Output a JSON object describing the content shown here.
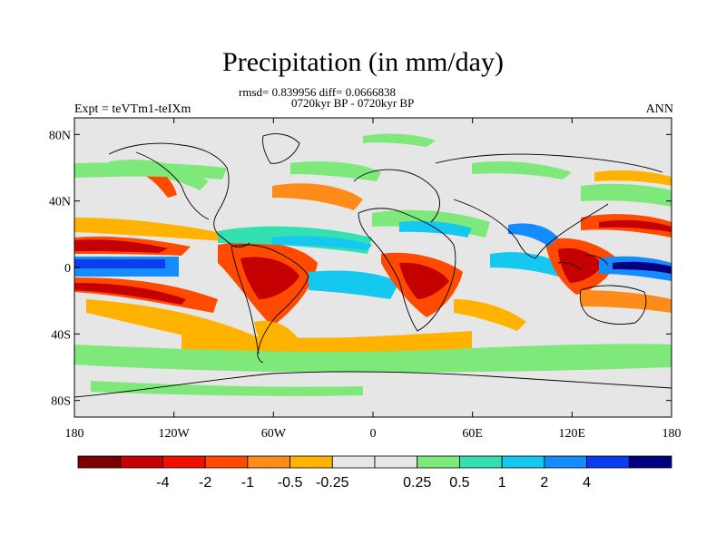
{
  "title": "Precipitation (in mm/day)",
  "stats_line": "rmsd= 0.839956 diff= 0.0666838",
  "period_line": "0720kyr BP - 0720kyr BP",
  "left_label": "Expt = teVTm1-teIXm",
  "right_label": "ANN",
  "map": {
    "projection": "cylindrical-equidistant",
    "lon_range": [
      -180,
      180
    ],
    "lat_range": [
      -90,
      90
    ],
    "background_color": "#e6e6e6",
    "x_ticks": [
      {
        "lon": -180,
        "label": "180"
      },
      {
        "lon": -120,
        "label": "120W"
      },
      {
        "lon": -60,
        "label": "60W"
      },
      {
        "lon": 0,
        "label": "0"
      },
      {
        "lon": 60,
        "label": "60E"
      },
      {
        "lon": 120,
        "label": "120E"
      },
      {
        "lon": 180,
        "label": "180"
      }
    ],
    "y_ticks": [
      {
        "lat": 80,
        "label": "80N"
      },
      {
        "lat": 40,
        "label": "40N"
      },
      {
        "lat": 0,
        "label": "0"
      },
      {
        "lat": -40,
        "label": "40S"
      },
      {
        "lat": -80,
        "label": "80S"
      }
    ]
  },
  "colorbar": {
    "colors": [
      "#7b0000",
      "#c40000",
      "#f01000",
      "#ff4a00",
      "#ff8c1a",
      "#ffb300",
      "#e6e6e6",
      "#e6e6e6",
      "#7fe87a",
      "#33e0b0",
      "#14c8f0",
      "#148cff",
      "#0a3cf0",
      "#000080"
    ],
    "labels": [
      "-4",
      "-2",
      "-1",
      "-0.5",
      "-0.25",
      "0.25",
      "0.5",
      "1",
      "2",
      "4"
    ],
    "label_boundary_index": [
      2,
      3,
      4,
      5,
      6,
      8,
      9,
      10,
      11,
      12
    ]
  }
}
